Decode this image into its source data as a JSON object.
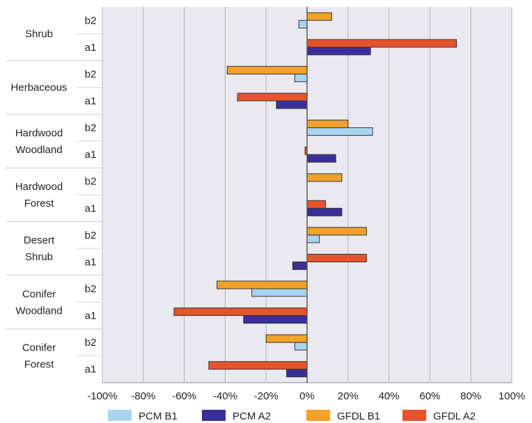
{
  "chart_data": {
    "type": "bar",
    "orientation": "horizontal",
    "title": "",
    "xlabel": "",
    "ylabel": "",
    "xlim": [
      -100,
      100
    ],
    "x_ticks": [
      "-100%",
      "-80%",
      "-60%",
      "-40%",
      "-20%",
      "0%",
      "20%",
      "40%",
      "60%",
      "80%",
      "100%"
    ],
    "grid": true,
    "legend_position": "bottom",
    "groups": [
      {
        "name": [
          "Shrub"
        ],
        "rows": [
          {
            "label": "b2",
            "values": [
              -4,
              0,
              12,
              0
            ]
          },
          {
            "label": "a1",
            "values": [
              0,
              31,
              0,
              73
            ]
          }
        ]
      },
      {
        "name": [
          "Herbaceous"
        ],
        "rows": [
          {
            "label": "b2",
            "values": [
              -6,
              0,
              -39,
              0
            ]
          },
          {
            "label": "a1",
            "values": [
              0,
              -15,
              0,
              -34
            ]
          }
        ]
      },
      {
        "name": [
          "Hardwood",
          "Woodland"
        ],
        "rows": [
          {
            "label": "b2",
            "values": [
              32,
              0,
              20,
              0
            ]
          },
          {
            "label": "a1",
            "values": [
              0,
              14,
              0,
              -1
            ]
          }
        ]
      },
      {
        "name": [
          "Hardwood",
          "Forest"
        ],
        "rows": [
          {
            "label": "b2",
            "values": [
              0,
              0,
              17,
              0
            ]
          },
          {
            "label": "a1",
            "values": [
              0,
              17,
              0,
              9
            ]
          }
        ]
      },
      {
        "name": [
          "Desert",
          "Shrub"
        ],
        "rows": [
          {
            "label": "b2",
            "values": [
              6,
              0,
              29,
              0
            ]
          },
          {
            "label": "a1",
            "values": [
              0,
              -7,
              0,
              29
            ]
          }
        ]
      },
      {
        "name": [
          "Conifer",
          "Woodland"
        ],
        "rows": [
          {
            "label": "b2",
            "values": [
              -27,
              0,
              -44,
              0
            ]
          },
          {
            "label": "a1",
            "values": [
              0,
              -31,
              0,
              -65
            ]
          }
        ]
      },
      {
        "name": [
          "Conifer",
          "Forest"
        ],
        "rows": [
          {
            "label": "b2",
            "values": [
              -6,
              0,
              -20,
              0
            ]
          },
          {
            "label": "a1",
            "values": [
              0,
              -10,
              0,
              -48
            ]
          }
        ]
      }
    ],
    "series": [
      {
        "name": "PCM B1",
        "color": "#a9d4ee"
      },
      {
        "name": "PCM A2",
        "color": "#3a2f9a"
      },
      {
        "name": "GFDL B1",
        "color": "#f2a12a"
      },
      {
        "name": "GFDL A2",
        "color": "#e8532b"
      }
    ]
  }
}
